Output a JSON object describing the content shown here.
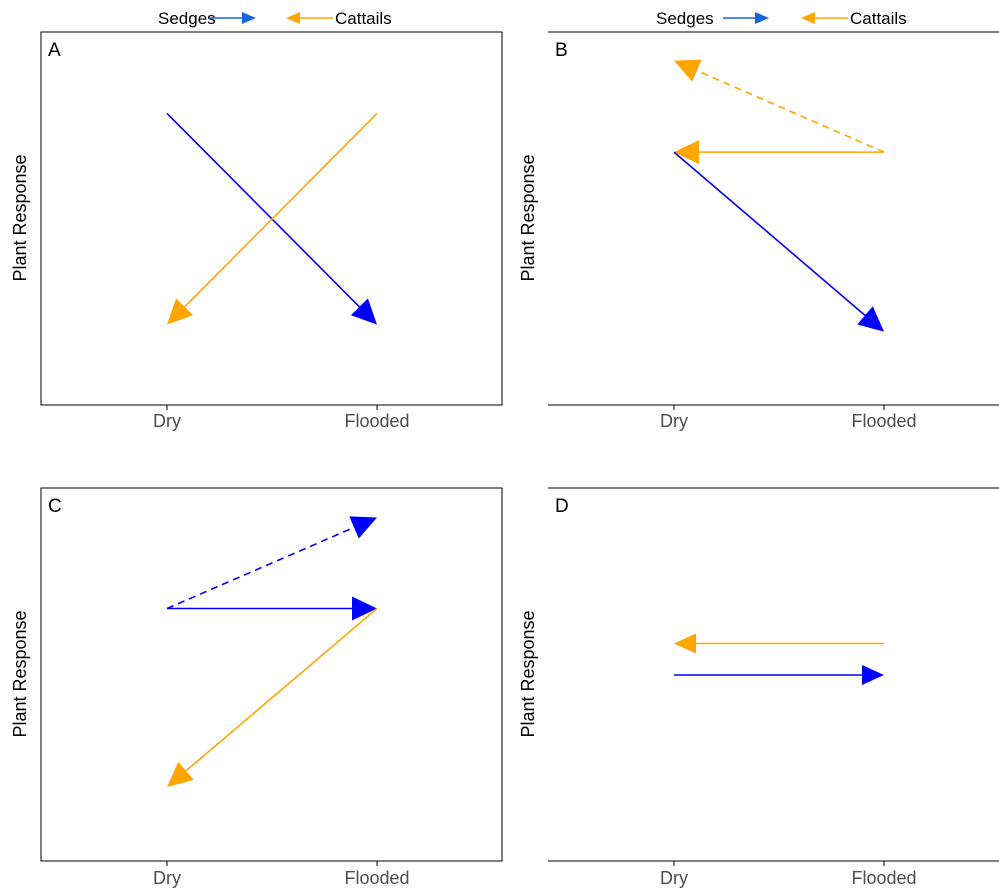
{
  "chart_data": [
    {
      "type": "line",
      "panel": "A",
      "categories": [
        "Dry",
        "Flooded"
      ],
      "xlabel": "",
      "ylabel": "Plant Response",
      "ylim": [
        0,
        100
      ],
      "frame": "box",
      "arrows": [
        {
          "series": "Sedges",
          "from": "Dry",
          "from_y": 80,
          "to": "Flooded",
          "to_y": 20,
          "style": "solid",
          "head": "large"
        },
        {
          "series": "Cattails",
          "from": "Flooded",
          "from_y": 80,
          "to": "Dry",
          "to_y": 20,
          "style": "solid",
          "head": "large"
        }
      ]
    },
    {
      "type": "line",
      "panel": "B",
      "categories": [
        "Dry",
        "Flooded"
      ],
      "xlabel": "",
      "ylabel": "Plant Response",
      "ylim": [
        0,
        100
      ],
      "frame": "axes",
      "legend": [
        {
          "name": "Sedges",
          "direction": "right"
        },
        {
          "name": "Cattails",
          "direction": "left"
        }
      ],
      "arrows": [
        {
          "series": "Cattails",
          "from": "Flooded",
          "from_y": 69,
          "to": "Dry",
          "to_y": 95,
          "style": "dashed",
          "head": "large"
        },
        {
          "series": "Cattails",
          "from": "Flooded",
          "from_y": 69,
          "to": "Dry",
          "to_y": 69,
          "style": "solid",
          "head": "large"
        },
        {
          "series": "Sedges",
          "from": "Dry",
          "from_y": 69,
          "to": "Flooded",
          "to_y": 18,
          "style": "solid",
          "head": "large"
        }
      ]
    },
    {
      "type": "line",
      "panel": "C",
      "categories": [
        "Dry",
        "Flooded"
      ],
      "xlabel": "",
      "ylabel": "Plant Response",
      "ylim": [
        0,
        100
      ],
      "frame": "box",
      "arrows": [
        {
          "series": "Sedges",
          "from": "Dry",
          "from_y": 69,
          "to": "Flooded",
          "to_y": 95,
          "style": "dashed",
          "head": "large"
        },
        {
          "series": "Sedges",
          "from": "Dry",
          "from_y": 69,
          "to": "Flooded",
          "to_y": 69,
          "style": "solid",
          "head": "large"
        },
        {
          "series": "Cattails",
          "from": "Flooded",
          "from_y": 69,
          "to": "Dry",
          "to_y": 18,
          "style": "solid",
          "head": "large"
        }
      ]
    },
    {
      "type": "line",
      "panel": "D",
      "categories": [
        "Dry",
        "Flooded"
      ],
      "xlabel": "",
      "ylabel": "Plant Response",
      "ylim": [
        0,
        100
      ],
      "frame": "axes",
      "arrows": [
        {
          "series": "Cattails",
          "from": "Flooded",
          "from_y": 59,
          "to": "Dry",
          "to_y": 59,
          "style": "solid",
          "head": "small"
        },
        {
          "series": "Sedges",
          "from": "Dry",
          "from_y": 50,
          "to": "Flooded",
          "to_y": 50,
          "style": "solid",
          "head": "small"
        }
      ]
    }
  ],
  "legend": {
    "items": [
      {
        "name": "Sedges",
        "color": "#1565e0",
        "direction": "right"
      },
      {
        "name": "Cattails",
        "color": "#ffa500",
        "direction": "left"
      }
    ]
  },
  "colors": {
    "Sedges": "#0000ff",
    "Cattails": "#ffa500",
    "axis": "#000000",
    "tick_text": "#4d4d4d"
  }
}
